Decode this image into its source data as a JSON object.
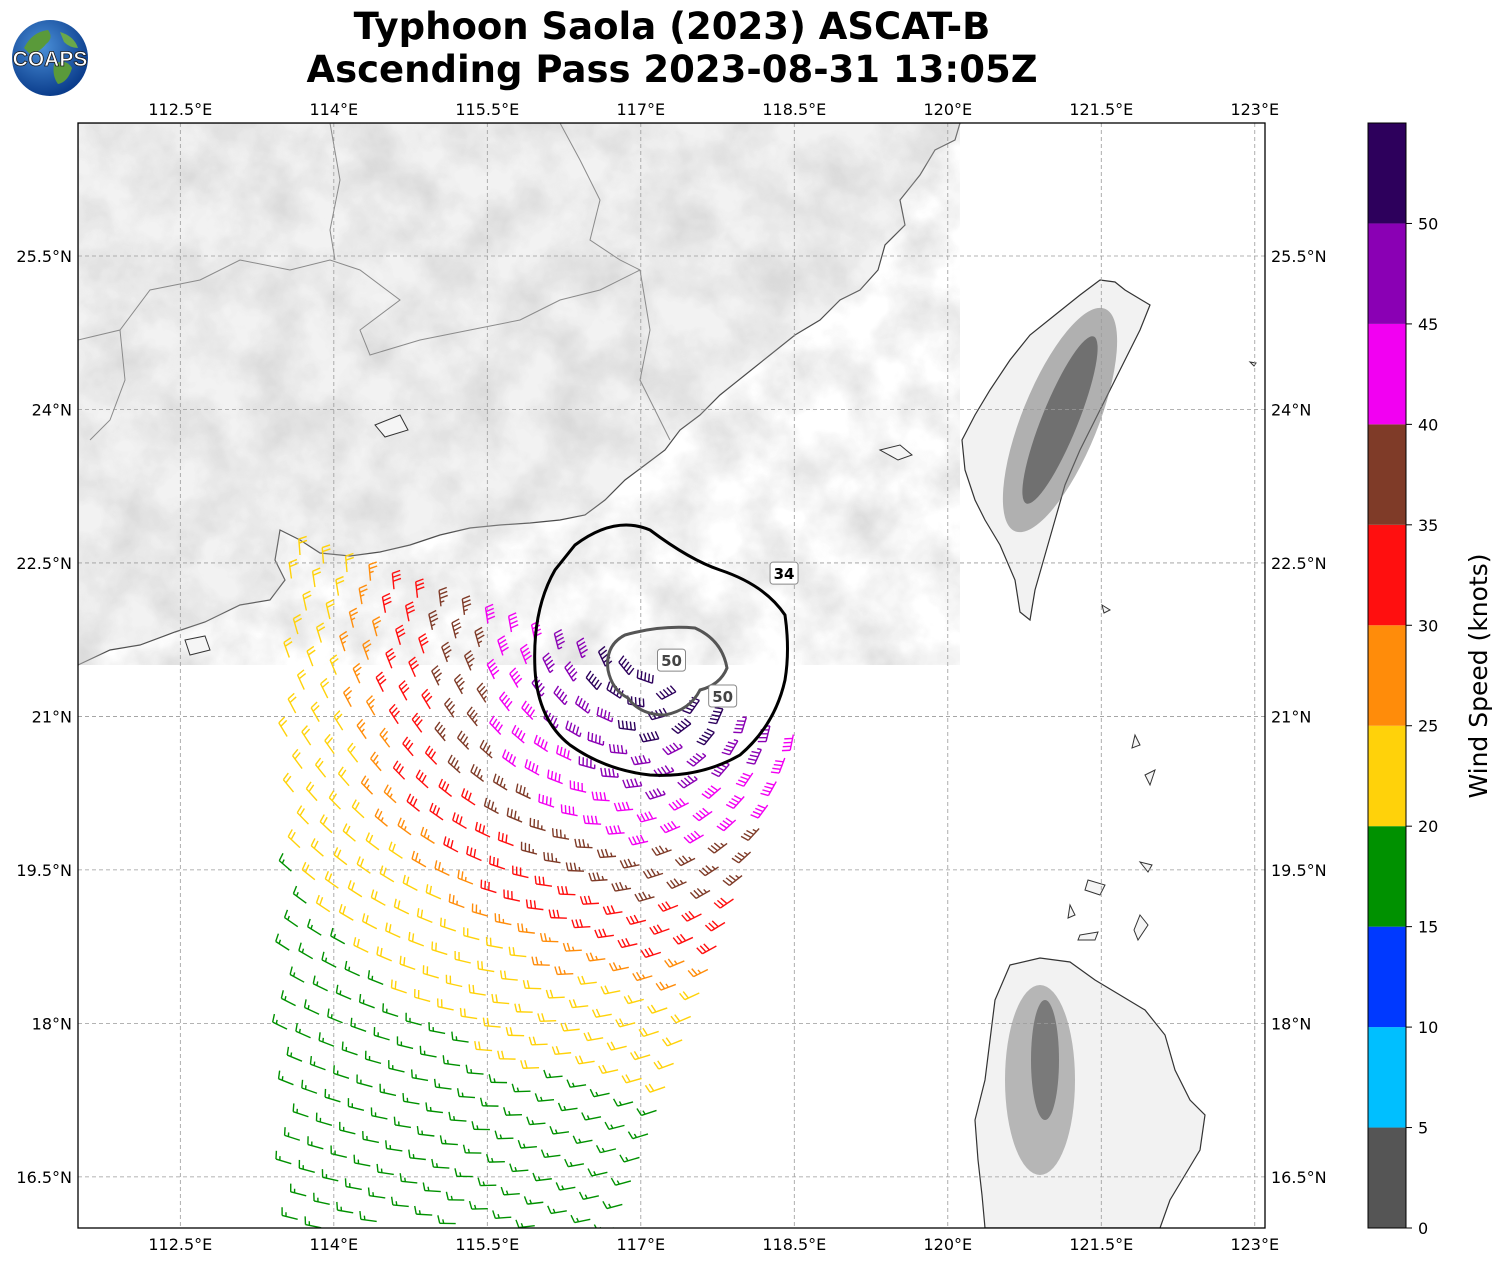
{
  "title": {
    "line1": "Typhoon Saola (2023) ASCAT-B",
    "line2": "Ascending Pass 2023-08-31 13:05Z"
  },
  "logo_text": "COAPS",
  "map": {
    "extent": {
      "lon_min": 111.5,
      "lon_max": 123.1,
      "lat_min": 16.0,
      "lat_max": 26.8
    },
    "lon_ticks": [
      "112.5°E",
      "114°E",
      "115.5°E",
      "117°E",
      "118.5°E",
      "120°E",
      "121.5°E",
      "123°E"
    ],
    "lon_tick_values": [
      112.5,
      114,
      115.5,
      117,
      118.5,
      120,
      121.5,
      123
    ],
    "lat_ticks": [
      "16.5°N",
      "18°N",
      "19.5°N",
      "21°N",
      "22.5°N",
      "24°N",
      "25.5°N"
    ],
    "lat_tick_values": [
      16.5,
      18,
      19.5,
      21,
      22.5,
      24,
      25.5
    ],
    "gridlines": true,
    "storm_center": {
      "lon": 117.3,
      "lat": 21.55
    },
    "contour_labels": [
      {
        "text": "34",
        "lon": 118.4,
        "lat": 22.4,
        "color": "#000000"
      },
      {
        "text": "50",
        "lon": 117.3,
        "lat": 21.55,
        "color": "#444444"
      },
      {
        "text": "50",
        "lon": 117.8,
        "lat": 21.2,
        "color": "#444444"
      }
    ]
  },
  "colorbar": {
    "label": "Wind Speed (knots)",
    "ticks": [
      "0",
      "5",
      "10",
      "15",
      "20",
      "25",
      "30",
      "35",
      "40",
      "45",
      "50"
    ],
    "tick_values": [
      0,
      5,
      10,
      15,
      20,
      25,
      30,
      35,
      40,
      45,
      50
    ],
    "max": 55,
    "bins": [
      {
        "min": 0,
        "max": 5,
        "color": "#555555"
      },
      {
        "min": 5,
        "max": 10,
        "color": "#00bfff"
      },
      {
        "min": 10,
        "max": 15,
        "color": "#0039ff"
      },
      {
        "min": 15,
        "max": 20,
        "color": "#009100"
      },
      {
        "min": 20,
        "max": 25,
        "color": "#ffd20a"
      },
      {
        "min": 25,
        "max": 30,
        "color": "#ff8c0a"
      },
      {
        "min": 30,
        "max": 35,
        "color": "#ff0f0f"
      },
      {
        "min": 35,
        "max": 40,
        "color": "#7f3b28"
      },
      {
        "min": 40,
        "max": 45,
        "color": "#f200f2"
      },
      {
        "min": 45,
        "max": 50,
        "color": "#8a00b4"
      },
      {
        "min": 50,
        "max": 55,
        "color": "#2d005c"
      }
    ]
  }
}
